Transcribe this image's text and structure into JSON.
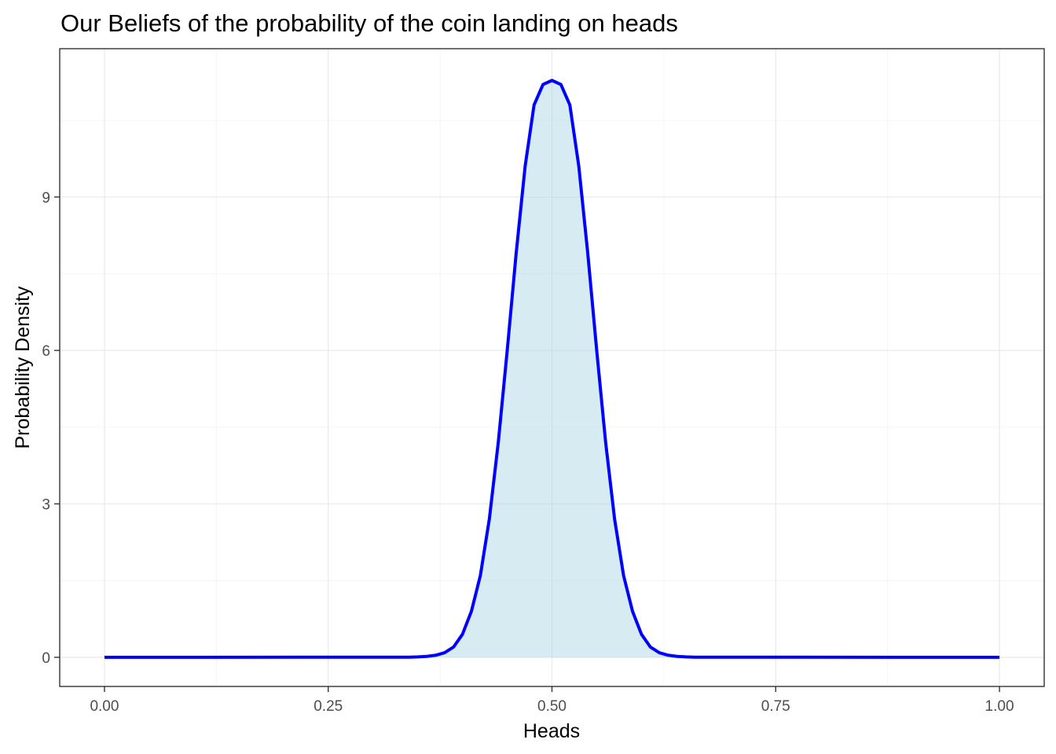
{
  "chart_data": {
    "type": "area",
    "title": "Our Beliefs of the probability of the coin landing on heads",
    "xlabel": "Heads",
    "ylabel": "Probability Density",
    "xlim": [
      -0.05,
      1.05
    ],
    "ylim": [
      -0.57,
      11.9
    ],
    "x_ticks": [
      0.0,
      0.25,
      0.5,
      0.75,
      1.0
    ],
    "x_tick_labels": [
      "0.00",
      "0.25",
      "0.50",
      "0.75",
      "1.00"
    ],
    "y_ticks": [
      0,
      3,
      6,
      9
    ],
    "y_tick_labels": [
      "0",
      "3",
      "6",
      "9"
    ],
    "grid": true,
    "legend": "none",
    "colors": {
      "line": "#0000ff",
      "fill": "#add8e6",
      "fill_opacity": 0.5
    },
    "series": [
      {
        "x": [
          0.0,
          0.34,
          0.35,
          0.36,
          0.37,
          0.38,
          0.39,
          0.4,
          0.41,
          0.42,
          0.43,
          0.44,
          0.45,
          0.46,
          0.47,
          0.48,
          0.49,
          0.5,
          0.51,
          0.52,
          0.53,
          0.54,
          0.55,
          0.56,
          0.57,
          0.58,
          0.59,
          0.6,
          0.61,
          0.62,
          0.63,
          0.64,
          0.65,
          0.66,
          1.0
        ],
        "y": [
          0.0,
          0.003,
          0.008,
          0.018,
          0.04,
          0.09,
          0.2,
          0.45,
          0.9,
          1.6,
          2.7,
          4.2,
          6.0,
          7.9,
          9.6,
          10.8,
          11.2,
          11.28,
          11.2,
          10.8,
          9.6,
          7.9,
          6.0,
          4.2,
          2.7,
          1.6,
          0.9,
          0.45,
          0.2,
          0.09,
          0.04,
          0.018,
          0.008,
          0.003,
          0.0
        ]
      }
    ]
  }
}
